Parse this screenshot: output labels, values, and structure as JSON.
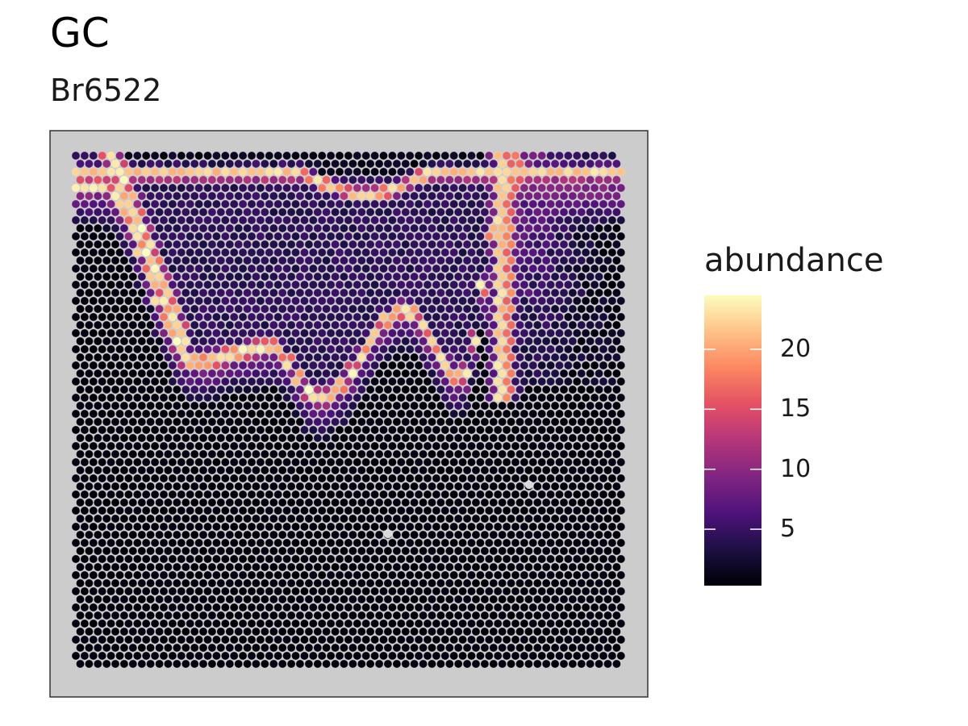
{
  "title": "GC",
  "subtitle": "Br6522",
  "chart_data": {
    "type": "heatmap",
    "subtype": "spatial-spot-map",
    "title": "GC",
    "subtitle": "Br6522",
    "xlabel": "",
    "ylabel": "",
    "grid": false,
    "panel_background": "#cccccc",
    "missing_value_color": "#d9d9d9",
    "colorscale": "magma",
    "colorscale_stops": [
      "#000004",
      "#1c1044",
      "#4f127b",
      "#812581",
      "#b5367a",
      "#e55064",
      "#fb8761",
      "#fec287",
      "#fcfdbf"
    ],
    "legend": {
      "title": "abundance",
      "position": "right",
      "min": 0.3,
      "max": 24.5,
      "ticks": [
        5,
        10,
        15,
        20
      ],
      "tick_labels": [
        "5",
        "10",
        "15",
        "20"
      ]
    },
    "spot_grid": {
      "columns": 64,
      "rows": 64
    },
    "pattern": {
      "band_peak_abundance": 22,
      "outer_layer_abundance": 8,
      "interior_abundance": 3,
      "background_abundance": 0.5,
      "band_shape_x": [
        0.04,
        0.21,
        0.34,
        0.43,
        0.58,
        0.68,
        0.76
      ],
      "band_shape_y": [
        0.06,
        0.4,
        0.37,
        0.47,
        0.3,
        0.43,
        0.06
      ],
      "right_arm_x": 0.77
    }
  }
}
